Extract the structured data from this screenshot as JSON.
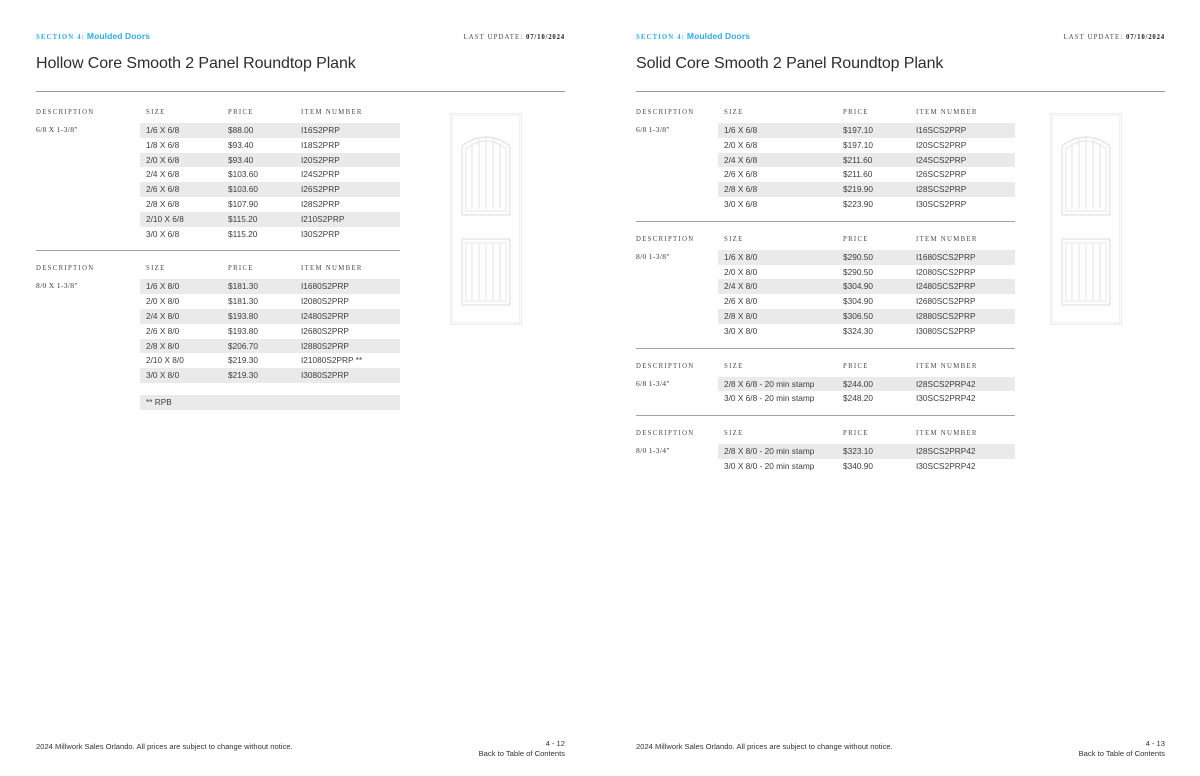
{
  "theme": {
    "accent_color": "#2fabe3",
    "row_shade_color": "#eaeaea"
  },
  "pages": [
    {
      "section_label": "SECTION 4:",
      "section_name": "Moulded Doors",
      "last_update_label": "LAST UPDATE:",
      "last_update_value": "07/10/2024",
      "title": "Hollow Core Smooth 2 Panel Roundtop Plank",
      "columns": [
        "DESCRIPTION",
        "SIZE",
        "PRICE",
        "ITEM NUMBER"
      ],
      "tables": [
        {
          "description": "6/8 X 1-3/8\"",
          "rows": [
            {
              "size": "1/6 X 6/8",
              "price": "$88.00",
              "item": "I16S2PRP"
            },
            {
              "size": "1/8 X 6/8",
              "price": "$93.40",
              "item": "I18S2PRP"
            },
            {
              "size": "2/0 X 6/8",
              "price": "$93.40",
              "item": "I20S2PRP"
            },
            {
              "size": "2/4 X 6/8",
              "price": "$103.60",
              "item": "I24S2PRP"
            },
            {
              "size": "2/6 X 6/8",
              "price": "$103.60",
              "item": "I26S2PRP"
            },
            {
              "size": "2/8 X 6/8",
              "price": "$107.90",
              "item": "I28S2PRP"
            },
            {
              "size": "2/10 X 6/8",
              "price": "$115.20",
              "item": "I210S2PRP"
            },
            {
              "size": "3/0 X 6/8",
              "price": "$115.20",
              "item": "I30S2PRP"
            }
          ]
        },
        {
          "description": "8/0 X 1-3/8\"",
          "rows": [
            {
              "size": "1/6 X 8/0",
              "price": "$181.30",
              "item": "I1680S2PRP"
            },
            {
              "size": "2/0 X 8/0",
              "price": "$181.30",
              "item": "I2080S2PRP"
            },
            {
              "size": "2/4 X 8/0",
              "price": "$193.80",
              "item": "I2480S2PRP"
            },
            {
              "size": "2/6 X 8/0",
              "price": "$193.80",
              "item": "I2680S2PRP"
            },
            {
              "size": "2/8 X 8/0",
              "price": "$206.70",
              "item": "I2880S2PRP"
            },
            {
              "size": "2/10 X 8/0",
              "price": "$219.30",
              "item": "I21080S2PRP **"
            },
            {
              "size": "3/0 X 8/0",
              "price": "$219.30",
              "item": "I3080S2PRP"
            }
          ]
        }
      ],
      "note": "** RPB",
      "footer_notice": "2024 Millwork Sales Orlando. All prices are subject to change without notice.",
      "page_number": "4 - 12",
      "back_link": "Back to Table of Contents"
    },
    {
      "section_label": "SECTION 4:",
      "section_name": "Moulded Doors",
      "last_update_label": "LAST UPDATE:",
      "last_update_value": "07/10/2024",
      "title": "Solid Core Smooth 2 Panel Roundtop Plank",
      "columns": [
        "DESCRIPTION",
        "SIZE",
        "PRICE",
        "ITEM NUMBER"
      ],
      "tables": [
        {
          "description": "6/8 1-3/8\"",
          "rows": [
            {
              "size": "1/6 X 6/8",
              "price": "$197.10",
              "item": "I16SCS2PRP"
            },
            {
              "size": "2/0 X 6/8",
              "price": "$197.10",
              "item": "I20SCS2PRP"
            },
            {
              "size": "2/4 X 6/8",
              "price": "$211.60",
              "item": "I24SCS2PRP"
            },
            {
              "size": "2/6 X 6/8",
              "price": "$211.60",
              "item": "I26SCS2PRP"
            },
            {
              "size": "2/8 X 6/8",
              "price": "$219.90",
              "item": "I28SCS2PRP"
            },
            {
              "size": "3/0 X 6/8",
              "price": "$223.90",
              "item": "I30SCS2PRP"
            }
          ]
        },
        {
          "description": "8/0 1-3/8\"",
          "rows": [
            {
              "size": "1/6 X 8/0",
              "price": "$290.50",
              "item": "I1680SCS2PRP"
            },
            {
              "size": "2/0 X 8/0",
              "price": "$290.50",
              "item": "I2080SCS2PRP"
            },
            {
              "size": "2/4 X 8/0",
              "price": "$304.90",
              "item": "I2480SCS2PRP"
            },
            {
              "size": "2/6 X 8/0",
              "price": "$304.90",
              "item": "I2680SCS2PRP"
            },
            {
              "size": "2/8 X 8/0",
              "price": "$306.50",
              "item": "I2880SCS2PRP"
            },
            {
              "size": "3/0 X 8/0",
              "price": "$324.30",
              "item": "I3080SCS2PRP"
            }
          ]
        },
        {
          "description": "6/8 1-3/4\"",
          "rows": [
            {
              "size": "2/8 X 6/8 - 20 min stamp",
              "price": "$244.00",
              "item": "I28SCS2PRP42"
            },
            {
              "size": "3/0 X 6/8 - 20 min stamp",
              "price": "$248.20",
              "item": "I30SCS2PRP42"
            }
          ]
        },
        {
          "description": "8/0 1-3/4\"",
          "rows": [
            {
              "size": "2/8 X 8/0 - 20 min stamp",
              "price": "$323.10",
              "item": "I28SCS2PRP42"
            },
            {
              "size": "3/0 X 8/0 - 20 min stamp",
              "price": "$340.90",
              "item": "I30SCS2PRP42"
            }
          ]
        }
      ],
      "note": null,
      "footer_notice": "2024 Millwork Sales Orlando. All prices are subject to change without notice.",
      "page_number": "4 - 13",
      "back_link": "Back to Table of Contents"
    }
  ]
}
